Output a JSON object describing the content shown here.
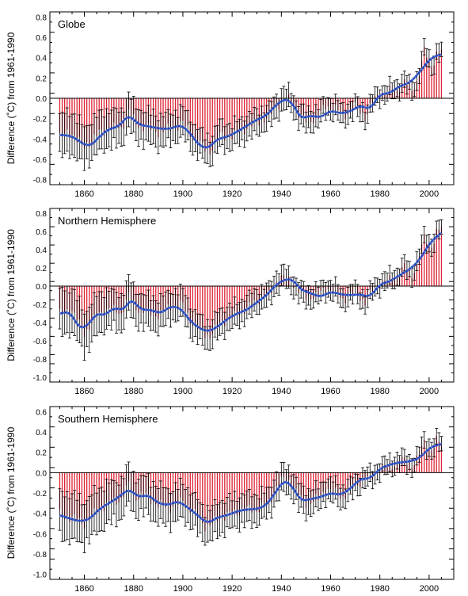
{
  "chart_data": [
    {
      "type": "bar",
      "title": "Globe",
      "ylabel": "Difference (˚C) from 1961-1990",
      "xlim": [
        1846,
        2010
      ],
      "ylim": [
        -0.85,
        0.85
      ],
      "xticks": [
        1860,
        1880,
        1900,
        1920,
        1940,
        1960,
        1980,
        2000
      ],
      "yticks": [
        -0.8,
        -0.6,
        -0.4,
        -0.2,
        0.0,
        0.2,
        0.4,
        0.6,
        0.8
      ],
      "ytick_labels": [
        "-0.8",
        "-0.6",
        "-0.4",
        "-0.2",
        "0.0",
        "0.2",
        "0.4",
        "0.6",
        "0.8"
      ],
      "smooth_curve": [
        [
          1850,
          -0.36
        ],
        [
          1855,
          -0.37
        ],
        [
          1860,
          -0.46
        ],
        [
          1863,
          -0.46
        ],
        [
          1866,
          -0.38
        ],
        [
          1870,
          -0.3
        ],
        [
          1874,
          -0.28
        ],
        [
          1878,
          -0.16
        ],
        [
          1882,
          -0.26
        ],
        [
          1887,
          -0.28
        ],
        [
          1891,
          -0.3
        ],
        [
          1895,
          -0.3
        ],
        [
          1899,
          -0.26
        ],
        [
          1903,
          -0.34
        ],
        [
          1906,
          -0.45
        ],
        [
          1910,
          -0.5
        ],
        [
          1914,
          -0.4
        ],
        [
          1918,
          -0.38
        ],
        [
          1922,
          -0.33
        ],
        [
          1926,
          -0.27
        ],
        [
          1930,
          -0.21
        ],
        [
          1934,
          -0.17
        ],
        [
          1938,
          -0.06
        ],
        [
          1942,
          0.0
        ],
        [
          1945,
          -0.07
        ],
        [
          1948,
          -0.2
        ],
        [
          1952,
          -0.17
        ],
        [
          1956,
          -0.19
        ],
        [
          1960,
          -0.12
        ],
        [
          1964,
          -0.15
        ],
        [
          1968,
          -0.13
        ],
        [
          1972,
          -0.07
        ],
        [
          1976,
          -0.11
        ],
        [
          1980,
          0.04
        ],
        [
          1984,
          0.05
        ],
        [
          1988,
          0.12
        ],
        [
          1992,
          0.15
        ],
        [
          1996,
          0.25
        ],
        [
          2000,
          0.38
        ],
        [
          2003,
          0.42
        ],
        [
          2005,
          0.43
        ]
      ],
      "anomaly_anchors": [
        [
          1850,
          -0.37
        ],
        [
          1855,
          -0.34
        ],
        [
          1860,
          -0.48
        ],
        [
          1865,
          -0.36
        ],
        [
          1870,
          -0.29
        ],
        [
          1875,
          -0.3
        ],
        [
          1878,
          -0.12
        ],
        [
          1881,
          -0.26
        ],
        [
          1885,
          -0.28
        ],
        [
          1890,
          -0.33
        ],
        [
          1895,
          -0.3
        ],
        [
          1900,
          -0.24
        ],
        [
          1904,
          -0.38
        ],
        [
          1909,
          -0.5
        ],
        [
          1911,
          -0.52
        ],
        [
          1915,
          -0.36
        ],
        [
          1920,
          -0.38
        ],
        [
          1925,
          -0.3
        ],
        [
          1930,
          -0.24
        ],
        [
          1935,
          -0.18
        ],
        [
          1938,
          -0.08
        ],
        [
          1941,
          0.0
        ],
        [
          1944,
          -0.03
        ],
        [
          1946,
          -0.12
        ],
        [
          1950,
          -0.23
        ],
        [
          1955,
          -0.18
        ],
        [
          1958,
          -0.08
        ],
        [
          1962,
          -0.1
        ],
        [
          1965,
          -0.18
        ],
        [
          1970,
          -0.08
        ],
        [
          1974,
          -0.18
        ],
        [
          1977,
          -0.04
        ],
        [
          1980,
          0.04
        ],
        [
          1983,
          0.06
        ],
        [
          1987,
          0.09
        ],
        [
          1990,
          0.17
        ],
        [
          1993,
          0.08
        ],
        [
          1995,
          0.16
        ],
        [
          1998,
          0.46
        ],
        [
          2001,
          0.32
        ],
        [
          2003,
          0.44
        ],
        [
          2005,
          0.47
        ]
      ],
      "error_half_width": [
        [
          1850,
          0.2
        ],
        [
          1880,
          0.16
        ],
        [
          1920,
          0.12
        ],
        [
          1950,
          0.1
        ],
        [
          1980,
          0.08
        ],
        [
          2005,
          0.08
        ]
      ]
    },
    {
      "type": "bar",
      "title": "Northern Hemisphere",
      "ylabel": "Difference (˚C) from 1961-1990",
      "xlim": [
        1846,
        2010
      ],
      "ylim": [
        -1.05,
        0.85
      ],
      "xticks": [
        1860,
        1880,
        1900,
        1920,
        1940,
        1960,
        1980,
        2000
      ],
      "yticks": [
        -1.0,
        -0.8,
        -0.6,
        -0.4,
        -0.2,
        0.0,
        0.2,
        0.4,
        0.6,
        0.8
      ],
      "ytick_labels": [
        "-1.0",
        "-0.8",
        "-0.6",
        "-0.4",
        "-0.2",
        "0.0",
        "0.2",
        "0.4",
        "0.6",
        "0.8"
      ],
      "smooth_curve": [
        [
          1850,
          -0.3
        ],
        [
          1854,
          -0.28
        ],
        [
          1858,
          -0.46
        ],
        [
          1861,
          -0.44
        ],
        [
          1865,
          -0.3
        ],
        [
          1868,
          -0.32
        ],
        [
          1872,
          -0.24
        ],
        [
          1876,
          -0.26
        ],
        [
          1879,
          -0.14
        ],
        [
          1883,
          -0.26
        ],
        [
          1887,
          -0.26
        ],
        [
          1891,
          -0.3
        ],
        [
          1895,
          -0.22
        ],
        [
          1899,
          -0.24
        ],
        [
          1903,
          -0.38
        ],
        [
          1906,
          -0.45
        ],
        [
          1910,
          -0.5
        ],
        [
          1914,
          -0.45
        ],
        [
          1918,
          -0.36
        ],
        [
          1922,
          -0.3
        ],
        [
          1926,
          -0.26
        ],
        [
          1930,
          -0.18
        ],
        [
          1934,
          -0.1
        ],
        [
          1938,
          0.02
        ],
        [
          1942,
          0.08
        ],
        [
          1945,
          0.06
        ],
        [
          1948,
          -0.04
        ],
        [
          1952,
          -0.08
        ],
        [
          1956,
          -0.12
        ],
        [
          1960,
          -0.06
        ],
        [
          1964,
          -0.09
        ],
        [
          1968,
          -0.1
        ],
        [
          1972,
          -0.09
        ],
        [
          1976,
          -0.12
        ],
        [
          1980,
          0.02
        ],
        [
          1984,
          0.05
        ],
        [
          1988,
          0.12
        ],
        [
          1992,
          0.18
        ],
        [
          1996,
          0.28
        ],
        [
          2000,
          0.46
        ],
        [
          2003,
          0.54
        ],
        [
          2005,
          0.58
        ]
      ],
      "anomaly_anchors": [
        [
          1850,
          -0.3
        ],
        [
          1855,
          -0.26
        ],
        [
          1860,
          -0.52
        ],
        [
          1865,
          -0.32
        ],
        [
          1870,
          -0.24
        ],
        [
          1875,
          -0.3
        ],
        [
          1878,
          -0.1
        ],
        [
          1881,
          -0.24
        ],
        [
          1885,
          -0.28
        ],
        [
          1890,
          -0.32
        ],
        [
          1895,
          -0.22
        ],
        [
          1900,
          -0.2
        ],
        [
          1904,
          -0.42
        ],
        [
          1909,
          -0.52
        ],
        [
          1911,
          -0.55
        ],
        [
          1915,
          -0.4
        ],
        [
          1920,
          -0.34
        ],
        [
          1925,
          -0.26
        ],
        [
          1930,
          -0.16
        ],
        [
          1935,
          -0.1
        ],
        [
          1938,
          0.05
        ],
        [
          1941,
          0.1
        ],
        [
          1944,
          0.04
        ],
        [
          1947,
          -0.05
        ],
        [
          1950,
          -0.12
        ],
        [
          1955,
          -0.1
        ],
        [
          1958,
          -0.02
        ],
        [
          1962,
          -0.06
        ],
        [
          1965,
          -0.15
        ],
        [
          1970,
          -0.06
        ],
        [
          1974,
          -0.18
        ],
        [
          1977,
          -0.05
        ],
        [
          1980,
          0.03
        ],
        [
          1983,
          0.06
        ],
        [
          1987,
          0.1
        ],
        [
          1990,
          0.22
        ],
        [
          1993,
          0.12
        ],
        [
          1995,
          0.25
        ],
        [
          1998,
          0.52
        ],
        [
          2001,
          0.44
        ],
        [
          2003,
          0.58
        ],
        [
          2005,
          0.64
        ]
      ],
      "error_half_width": [
        [
          1850,
          0.24
        ],
        [
          1880,
          0.18
        ],
        [
          1920,
          0.13
        ],
        [
          1950,
          0.1
        ],
        [
          1980,
          0.09
        ],
        [
          2005,
          0.09
        ]
      ]
    },
    {
      "type": "bar",
      "title": "Southern Hemisphere",
      "ylabel": "Difference (˚C) from 1961-1990",
      "xlim": [
        1846,
        2010
      ],
      "ylim": [
        -1.05,
        0.65
      ],
      "xticks": [
        1860,
        1880,
        1900,
        1920,
        1940,
        1960,
        1980,
        2000
      ],
      "yticks": [
        -1.0,
        -0.8,
        -0.6,
        -0.4,
        -0.2,
        0.0,
        0.2,
        0.4,
        0.6
      ],
      "ytick_labels": [
        "-1.0",
        "-0.8",
        "-0.6",
        "-0.4",
        "-0.2",
        "0.0",
        "0.2",
        "0.4",
        "0.6"
      ],
      "smooth_curve": [
        [
          1850,
          -0.42
        ],
        [
          1854,
          -0.45
        ],
        [
          1858,
          -0.48
        ],
        [
          1862,
          -0.46
        ],
        [
          1866,
          -0.36
        ],
        [
          1870,
          -0.3
        ],
        [
          1874,
          -0.24
        ],
        [
          1878,
          -0.16
        ],
        [
          1882,
          -0.24
        ],
        [
          1886,
          -0.22
        ],
        [
          1890,
          -0.3
        ],
        [
          1894,
          -0.32
        ],
        [
          1898,
          -0.28
        ],
        [
          1902,
          -0.34
        ],
        [
          1906,
          -0.42
        ],
        [
          1910,
          -0.5
        ],
        [
          1914,
          -0.44
        ],
        [
          1918,
          -0.42
        ],
        [
          1922,
          -0.38
        ],
        [
          1926,
          -0.36
        ],
        [
          1930,
          -0.36
        ],
        [
          1934,
          -0.32
        ],
        [
          1938,
          -0.18
        ],
        [
          1941,
          -0.08
        ],
        [
          1944,
          -0.12
        ],
        [
          1948,
          -0.28
        ],
        [
          1952,
          -0.26
        ],
        [
          1956,
          -0.24
        ],
        [
          1960,
          -0.2
        ],
        [
          1964,
          -0.22
        ],
        [
          1968,
          -0.16
        ],
        [
          1972,
          -0.06
        ],
        [
          1976,
          -0.06
        ],
        [
          1980,
          0.04
        ],
        [
          1984,
          0.08
        ],
        [
          1988,
          0.1
        ],
        [
          1992,
          0.11
        ],
        [
          1996,
          0.14
        ],
        [
          2000,
          0.24
        ],
        [
          2003,
          0.27
        ],
        [
          2005,
          0.28
        ]
      ],
      "anomaly_anchors": [
        [
          1850,
          -0.42
        ],
        [
          1855,
          -0.44
        ],
        [
          1860,
          -0.5
        ],
        [
          1865,
          -0.38
        ],
        [
          1870,
          -0.3
        ],
        [
          1875,
          -0.26
        ],
        [
          1878,
          -0.12
        ],
        [
          1881,
          -0.24
        ],
        [
          1885,
          -0.22
        ],
        [
          1890,
          -0.32
        ],
        [
          1895,
          -0.34
        ],
        [
          1900,
          -0.28
        ],
        [
          1904,
          -0.38
        ],
        [
          1909,
          -0.52
        ],
        [
          1911,
          -0.52
        ],
        [
          1915,
          -0.44
        ],
        [
          1920,
          -0.4
        ],
        [
          1925,
          -0.36
        ],
        [
          1930,
          -0.36
        ],
        [
          1935,
          -0.3
        ],
        [
          1938,
          -0.14
        ],
        [
          1941,
          -0.06
        ],
        [
          1944,
          -0.1
        ],
        [
          1947,
          -0.24
        ],
        [
          1950,
          -0.3
        ],
        [
          1955,
          -0.26
        ],
        [
          1958,
          -0.16
        ],
        [
          1962,
          -0.2
        ],
        [
          1965,
          -0.24
        ],
        [
          1970,
          -0.12
        ],
        [
          1974,
          -0.06
        ],
        [
          1977,
          -0.04
        ],
        [
          1980,
          0.04
        ],
        [
          1983,
          0.06
        ],
        [
          1987,
          0.1
        ],
        [
          1990,
          0.12
        ],
        [
          1993,
          0.08
        ],
        [
          1995,
          0.12
        ],
        [
          1998,
          0.3
        ],
        [
          2001,
          0.22
        ],
        [
          2003,
          0.3
        ],
        [
          2005,
          0.3
        ]
      ],
      "error_half_width": [
        [
          1850,
          0.22
        ],
        [
          1880,
          0.18
        ],
        [
          1920,
          0.15
        ],
        [
          1950,
          0.12
        ],
        [
          1980,
          0.08
        ],
        [
          2005,
          0.08
        ]
      ]
    }
  ],
  "colors": {
    "bar": "#dd2233",
    "smooth": "#2244bb",
    "smooth_dots": "#5a7dd6",
    "error": "#000000",
    "axis": "#000000"
  }
}
